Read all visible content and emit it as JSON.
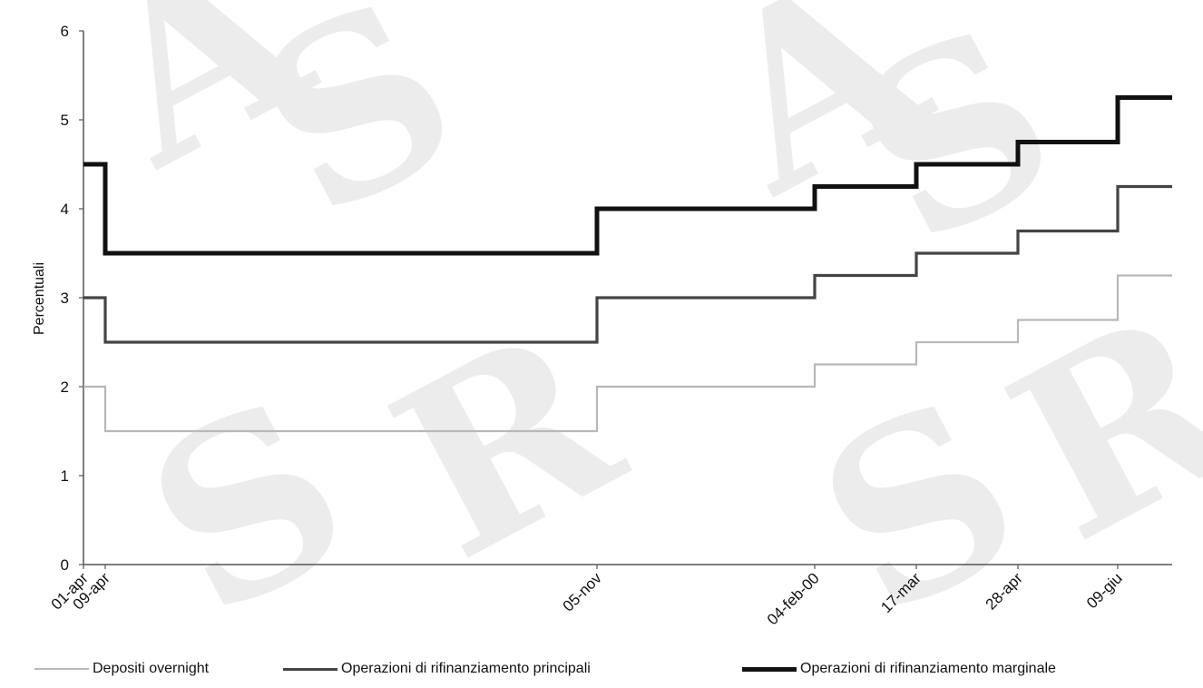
{
  "chart_data": {
    "type": "line",
    "ylabel": "Percentuali",
    "ylim": [
      0,
      6
    ],
    "y_ticks": [
      0,
      1,
      2,
      3,
      4,
      5,
      6
    ],
    "x_tick_labels": [
      "01-apr",
      "09-apr",
      "05-nov",
      "04-feb-00",
      "17-mar",
      "28-apr",
      "09-giu"
    ],
    "grid": false,
    "legend_position": "bottom",
    "x": [
      "01-apr",
      "09-apr",
      "05-nov",
      "04-feb-00",
      "17-mar",
      "28-apr",
      "09-giu",
      "end"
    ],
    "series": [
      {
        "name": "Depositi overnight",
        "color": "#b8b8b8",
        "values": [
          2.0,
          1.5,
          2.0,
          2.25,
          2.5,
          2.75,
          3.25,
          3.25
        ]
      },
      {
        "name": "Operazioni di rifinanziamento principali",
        "color": "#444444",
        "values": [
          3.0,
          2.5,
          3.0,
          3.25,
          3.5,
          3.75,
          4.25,
          4.25
        ]
      },
      {
        "name": "Operazioni di rifinanziamento marginale",
        "color": "#111111",
        "values": [
          4.5,
          3.5,
          4.0,
          4.25,
          4.5,
          4.75,
          5.25,
          5.25
        ]
      }
    ]
  }
}
